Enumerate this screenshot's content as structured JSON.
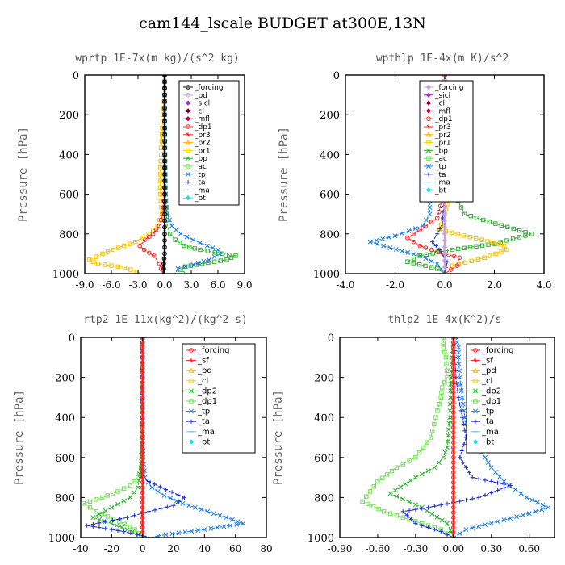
{
  "figure_title": "cam144_lscale  BUDGET at300E,13N",
  "chart_data": [
    {
      "type": "line",
      "title": "wprtp   1E-7x(m kg)/(s^2 kg)",
      "ylabel": "Pressure [hPa]",
      "xlim": [
        -9.0,
        9.0
      ],
      "ylim": [
        1000,
        0
      ],
      "xticks": [
        "-9.0",
        "-6.0",
        "-3.0",
        "0.0",
        "3.0",
        "6.0",
        "9.0"
      ],
      "yticks": [
        "0",
        "200",
        "400",
        "600",
        "800",
        "1000"
      ],
      "legend": [
        "_forcing",
        "_pd",
        "_sicl",
        "_cl",
        "_mfl",
        "_dp1",
        "_pr3",
        "_pr2",
        "_pr1",
        "_bp",
        "_ac",
        "_tp",
        "_ta",
        "_ma",
        "_bt"
      ],
      "legend_colors": [
        "#000000",
        "#c8a0e0",
        "#9b30d0",
        "#8b0040",
        "#c00040",
        "#ff2020",
        "#ff2020",
        "#ffb000",
        "#f0d000",
        "#30b030",
        "#70e050",
        "#2080e0",
        "#2030d0",
        "#70c0f0",
        "#20e0e0"
      ],
      "legend_markers": [
        "circle",
        "circle",
        "diamond",
        "diamond",
        "diamond",
        "circle",
        "cross",
        "triangle",
        "square",
        "x",
        "square",
        "x",
        "plus",
        "dash",
        "diamond"
      ],
      "series": [
        {
          "name": "_pr1",
          "color": "#f0c000",
          "x": [
            0,
            0,
            -0.2,
            -0.3,
            -0.4,
            -0.5,
            -0.5,
            -0.3,
            -0.8,
            -1.8,
            -3.3,
            -5.2,
            -7.0,
            -8.5,
            -7.5,
            -4.5,
            -2.5
          ],
          "y": [
            0,
            100,
            200,
            300,
            400,
            500,
            600,
            700,
            760,
            800,
            840,
            870,
            900,
            930,
            950,
            970,
            1000
          ]
        },
        {
          "name": "_ac",
          "color": "#30b030",
          "x": [
            0,
            0,
            0.05,
            0.1,
            0.2,
            0.3,
            0.6,
            1.2,
            2.2,
            4.0,
            6.5,
            8.0,
            7.0,
            4.2,
            2.3,
            1.8,
            2.5
          ],
          "y": [
            0,
            200,
            400,
            600,
            700,
            760,
            800,
            830,
            860,
            880,
            900,
            910,
            930,
            950,
            965,
            980,
            1000
          ]
        },
        {
          "name": "_tp",
          "color": "#2080e0",
          "x": [
            0,
            0,
            0,
            0.1,
            0.3,
            0.8,
            1.8,
            3.2,
            4.8,
            6.0,
            6.2,
            5.0,
            3.2,
            1.5,
            1.2
          ],
          "y": [
            0,
            200,
            400,
            600,
            700,
            760,
            800,
            830,
            860,
            880,
            900,
            930,
            955,
            975,
            1000
          ]
        },
        {
          "name": "_dp1",
          "color": "#ff2020",
          "x": [
            0,
            0,
            0,
            -0.05,
            -0.2,
            -0.6,
            -1.3,
            -2.2,
            -2.8,
            -2.3,
            -1.2,
            -0.6,
            -0.2
          ],
          "y": [
            0,
            200,
            400,
            600,
            700,
            760,
            800,
            830,
            860,
            880,
            910,
            950,
            1000
          ]
        },
        {
          "name": "_forcing",
          "color": "#000000",
          "x": [
            0,
            0,
            0,
            0,
            0,
            0,
            0,
            0,
            0,
            0,
            -0.1,
            -0.1,
            -0.1
          ],
          "y": [
            0,
            100,
            200,
            300,
            400,
            500,
            600,
            700,
            800,
            900,
            950,
            975,
            1000
          ]
        }
      ]
    },
    {
      "type": "line",
      "title": "wpthlp   1E-4x(m K)/s^2",
      "ylabel": "Pressure [hPa]",
      "xlim": [
        -4.0,
        4.0
      ],
      "ylim": [
        1000,
        0
      ],
      "xticks": [
        "-4.0",
        "-2.0",
        "0.0",
        "2.0",
        "4.0"
      ],
      "yticks": [
        "0",
        "200",
        "400",
        "600",
        "800",
        "1000"
      ],
      "legend": [
        "_forcing",
        "_sicl",
        "_cl",
        "_mfl",
        "_dp1",
        "_pr3",
        "_pr2",
        "_pr1",
        "_bp",
        "_ac",
        "_tp",
        "_ta",
        "_ma",
        "_bt"
      ],
      "legend_colors": [
        "#c8a0e0",
        "#9b30d0",
        "#8b0040",
        "#c00040",
        "#ff2020",
        "#ff2020",
        "#ffb000",
        "#f0d000",
        "#30b030",
        "#70e050",
        "#2080e0",
        "#2030d0",
        "#70c0f0",
        "#20e0e0"
      ],
      "legend_markers": [
        "diamond",
        "diamond",
        "diamond",
        "diamond",
        "circle",
        "cross",
        "triangle",
        "square",
        "x",
        "square",
        "x",
        "plus",
        "dash",
        "diamond"
      ],
      "series": [
        {
          "name": "_tp",
          "color": "#2080e0",
          "x": [
            0,
            -0.05,
            -0.15,
            -0.4,
            -0.7,
            -0.8,
            -0.6,
            -0.6,
            -0.9,
            -2.0,
            -3.0,
            -2.2,
            -1.0,
            -0.3,
            0
          ],
          "y": [
            0,
            100,
            200,
            300,
            400,
            500,
            600,
            700,
            760,
            810,
            840,
            870,
            910,
            950,
            1000
          ]
        },
        {
          "name": "_ac",
          "color": "#30b030",
          "x": [
            0,
            0.05,
            0.15,
            0.4,
            0.6,
            0.5,
            0.4,
            0.8,
            1.8,
            3.5,
            2.0,
            0.3,
            -1.0,
            -1.5,
            -0.3,
            0
          ],
          "y": [
            0,
            100,
            200,
            300,
            400,
            500,
            600,
            700,
            740,
            800,
            850,
            880,
            910,
            940,
            975,
            1000
          ]
        },
        {
          "name": "_pr1",
          "color": "#f0c000",
          "x": [
            0,
            0.05,
            0.1,
            0.2,
            0.3,
            0.2,
            0.1,
            0,
            -0.2,
            1.5,
            2.4,
            2.5,
            1.6,
            0.3,
            0.2
          ],
          "y": [
            0,
            200,
            400,
            500,
            560,
            600,
            650,
            700,
            780,
            830,
            860,
            880,
            920,
            960,
            1000
          ]
        },
        {
          "name": "_dp1",
          "color": "#ff2020",
          "x": [
            0,
            0,
            0,
            -0.05,
            -0.3,
            -1.0,
            -1.5,
            -1.0,
            -0.3,
            0.6,
            0.5,
            0
          ],
          "y": [
            0,
            200,
            400,
            600,
            720,
            780,
            820,
            860,
            890,
            920,
            960,
            1000
          ]
        },
        {
          "name": "_ta",
          "color": "#2030d0",
          "x": [
            0,
            0,
            0,
            0,
            -0.1,
            -0.3,
            -0.5,
            -0.2,
            0.1,
            0
          ],
          "y": [
            0,
            200,
            400,
            600,
            750,
            800,
            840,
            880,
            940,
            1000
          ]
        },
        {
          "name": "_forcing",
          "color": "#c8a0e0",
          "x": [
            0,
            0,
            0,
            0,
            0,
            0,
            0,
            0,
            0,
            0,
            0,
            0,
            0
          ],
          "y": [
            0,
            50,
            100,
            150,
            200,
            300,
            400,
            500,
            600,
            700,
            800,
            900,
            1000
          ]
        }
      ]
    },
    {
      "type": "line",
      "title": "rtp2   1E-11x(kg^2)/(kg^2 s)",
      "ylabel": "Pressure [hPa]",
      "xlim": [
        -40,
        80
      ],
      "ylim": [
        1000,
        0
      ],
      "xticks": [
        "-40",
        "-20",
        "0",
        "20",
        "40",
        "60",
        "80"
      ],
      "yticks": [
        "0",
        "200",
        "400",
        "600",
        "800",
        "1000"
      ],
      "legend": [
        "_forcing",
        "_sf",
        "_pd",
        "_cl",
        "_dp2",
        "_dp1",
        "_tp",
        "_ta",
        "_ma",
        "_bt"
      ],
      "legend_colors": [
        "#ff2020",
        "#ff2020",
        "#ffb000",
        "#f0d000",
        "#30b030",
        "#70e050",
        "#2080e0",
        "#2030d0",
        "#70c0f0",
        "#20e0e0"
      ],
      "legend_markers": [
        "circle",
        "cross",
        "triangle",
        "square",
        "x",
        "square",
        "x",
        "plus",
        "dash",
        "diamond"
      ],
      "series": [
        {
          "name": "_dp1",
          "color": "#70e050",
          "x": [
            0,
            0,
            0,
            0,
            -1,
            -3,
            -8,
            -16,
            -26,
            -38,
            -30,
            -15,
            -5,
            0
          ],
          "y": [
            0,
            200,
            400,
            600,
            650,
            700,
            740,
            770,
            800,
            830,
            870,
            920,
            960,
            1000
          ]
        },
        {
          "name": "_dp2",
          "color": "#30b030",
          "x": [
            0,
            0,
            0,
            -1,
            -3,
            -8,
            -20,
            -32,
            -20,
            -10,
            -3,
            0
          ],
          "y": [
            0,
            200,
            400,
            650,
            750,
            800,
            850,
            900,
            930,
            960,
            985,
            1000
          ]
        },
        {
          "name": "_tp",
          "color": "#2080e0",
          "x": [
            0,
            0,
            0.5,
            1.5,
            6,
            14,
            26,
            42,
            58,
            65,
            40,
            15,
            5
          ],
          "y": [
            0,
            400,
            600,
            700,
            750,
            790,
            830,
            870,
            910,
            930,
            960,
            985,
            1000
          ]
        },
        {
          "name": "_ta",
          "color": "#2030d0",
          "x": [
            0,
            0,
            -1,
            4,
            15,
            27,
            20,
            4,
            -10,
            -24,
            -36,
            -12,
            5
          ],
          "y": [
            0,
            600,
            700,
            720,
            760,
            800,
            840,
            870,
            900,
            920,
            940,
            970,
            1000
          ]
        },
        {
          "name": "_forcing",
          "color": "#ff2020",
          "x": [
            0,
            0,
            0,
            0,
            0,
            0,
            0,
            0,
            0,
            0,
            0,
            0,
            0,
            0,
            0,
            0,
            0,
            0,
            0,
            0,
            0
          ],
          "y": [
            0,
            50,
            100,
            150,
            200,
            250,
            300,
            350,
            400,
            450,
            500,
            550,
            600,
            650,
            700,
            750,
            800,
            850,
            900,
            950,
            1000
          ]
        }
      ]
    },
    {
      "type": "line",
      "title": "thlp2   1E-4x(K^2)/s",
      "ylabel": "Pressure [hPa]",
      "xlim": [
        -0.9,
        0.8
      ],
      "ylim": [
        1000,
        0
      ],
      "xticks": [
        "-0.90",
        "-0.60",
        "-0.30",
        "0.00",
        "0.30",
        "0.60"
      ],
      "yticks": [
        "0",
        "200",
        "400",
        "600",
        "800",
        "1000"
      ],
      "legend": [
        "_forcing",
        "_sf",
        "_pd",
        "_cl",
        "_dp2",
        "_dp1",
        "_tp",
        "_ta",
        "_ma",
        "_bt"
      ],
      "legend_colors": [
        "#ff2020",
        "#ff2020",
        "#ffb000",
        "#f0d000",
        "#30b030",
        "#70e050",
        "#2080e0",
        "#2030d0",
        "#70c0f0",
        "#20e0e0"
      ],
      "legend_markers": [
        "circle",
        "cross",
        "triangle",
        "square",
        "x",
        "square",
        "x",
        "plus",
        "dash",
        "diamond"
      ],
      "series": [
        {
          "name": "_dp1",
          "color": "#70e050",
          "x": [
            -0.08,
            -0.08,
            -0.06,
            -0.05,
            -0.09,
            -0.1,
            -0.14,
            -0.18,
            -0.3,
            -0.45,
            -0.6,
            -0.72,
            -0.55,
            -0.3,
            -0.1,
            0
          ],
          "y": [
            0,
            50,
            100,
            200,
            250,
            300,
            400,
            500,
            600,
            650,
            720,
            820,
            870,
            920,
            960,
            1000
          ]
        },
        {
          "name": "_dp2",
          "color": "#30b030",
          "x": [
            0,
            -0.02,
            -0.03,
            -0.05,
            -0.08,
            -0.15,
            -0.3,
            -0.5,
            -0.25,
            -0.05,
            0
          ],
          "y": [
            0,
            200,
            400,
            550,
            600,
            650,
            700,
            780,
            850,
            930,
            1000
          ]
        },
        {
          "name": "_tp",
          "color": "#2080e0",
          "x": [
            0.02,
            0.04,
            0.04,
            0.05,
            0.07,
            0.09,
            0.11,
            0.15,
            0.2,
            0.3,
            0.4,
            0.58,
            0.75,
            0.6,
            0.35,
            0.1,
            0
          ],
          "y": [
            0,
            50,
            100,
            200,
            300,
            400,
            450,
            500,
            550,
            650,
            720,
            800,
            850,
            880,
            920,
            960,
            1000
          ]
        },
        {
          "name": "_ta",
          "color": "#2030d0",
          "x": [
            0,
            0.02,
            0.04,
            0.07,
            0.1,
            0.05,
            0.15,
            0.45,
            0.2,
            -0.2,
            -0.4,
            -0.3,
            -0.1,
            0
          ],
          "y": [
            0,
            200,
            300,
            400,
            500,
            600,
            700,
            740,
            800,
            850,
            870,
            930,
            970,
            1000
          ]
        },
        {
          "name": "_forcing",
          "color": "#ff2020",
          "x": [
            0,
            0,
            0,
            0,
            0,
            0,
            0,
            0,
            0,
            0,
            0,
            0,
            0,
            0,
            0,
            0,
            0,
            0,
            0,
            0,
            0
          ],
          "y": [
            0,
            50,
            100,
            150,
            200,
            250,
            300,
            350,
            400,
            450,
            500,
            550,
            600,
            650,
            700,
            750,
            800,
            850,
            900,
            950,
            1000
          ]
        }
      ]
    }
  ]
}
